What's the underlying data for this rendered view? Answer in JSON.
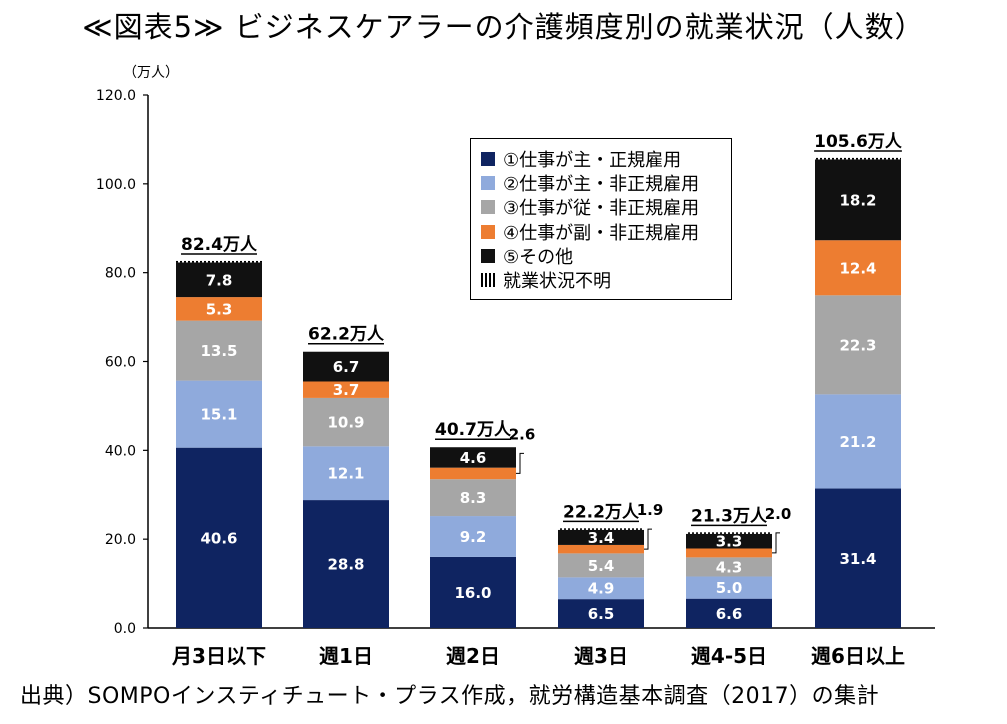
{
  "title": "≪図表5≫ ビジネスケアラーの介護頻度別の就業状況（人数）",
  "source": "出典）SOMPOインスティチュート・プラス作成，就労構造基本調査（2017）の集計",
  "chart_data": {
    "type": "bar",
    "stacked": true,
    "unit_label": "（万人）",
    "ylim": [
      0,
      120
    ],
    "y_ticks": [
      "0.0",
      "20.0",
      "40.0",
      "60.0",
      "80.0",
      "100.0",
      "120.0"
    ],
    "grid": false,
    "legend_position": "top-center",
    "categories": [
      "月3日以下",
      "週1日",
      "週2日",
      "週3日",
      "週4-5日",
      "週6日以上"
    ],
    "totals": [
      "82.4万人",
      "62.2万人",
      "40.7万人",
      "22.2万人",
      "21.3万人",
      "105.6万人"
    ],
    "series": [
      {
        "name": "①仕事が主・正規雇用",
        "color": "#0f2461",
        "text_color": "#ffffff",
        "values": [
          40.6,
          28.8,
          16.0,
          6.5,
          6.6,
          31.4
        ],
        "labels": [
          "40.6",
          "28.8",
          "16.0",
          "6.5",
          "6.6",
          "31.4"
        ]
      },
      {
        "name": "②仕事が主・非正規雇用",
        "color": "#8faadc",
        "text_color": "#ffffff",
        "values": [
          15.1,
          12.1,
          9.2,
          4.9,
          5.0,
          21.2
        ],
        "labels": [
          "15.1",
          "12.1",
          "9.2",
          "4.9",
          "5.0",
          "21.2"
        ]
      },
      {
        "name": "③仕事が従・非正規雇用",
        "color": "#a6a6a6",
        "text_color": "#ffffff",
        "values": [
          13.5,
          10.9,
          8.3,
          5.4,
          4.3,
          22.3
        ],
        "labels": [
          "13.5",
          "10.9",
          "8.3",
          "5.4",
          "4.3",
          "22.3"
        ]
      },
      {
        "name": "④仕事が副・非正規雇用",
        "color": "#ed7d31",
        "text_color": "#ffffff",
        "values": [
          5.3,
          3.7,
          2.6,
          1.9,
          2.0,
          12.4
        ],
        "labels": [
          "5.3",
          "3.7",
          "2.6",
          "1.9",
          "2.0",
          "12.4"
        ]
      },
      {
        "name": "⑤その他",
        "color": "#111111",
        "text_color": "#ffffff",
        "values": [
          7.8,
          6.7,
          4.6,
          3.4,
          3.3,
          18.2
        ],
        "labels": [
          "7.8",
          "6.7",
          "4.6",
          "3.4",
          "3.3",
          "18.2"
        ]
      },
      {
        "name": "就業状況不明",
        "color": "hatch",
        "values": [
          0.1,
          0.0,
          0.0,
          0.1,
          0.1,
          0.1
        ]
      }
    ]
  }
}
